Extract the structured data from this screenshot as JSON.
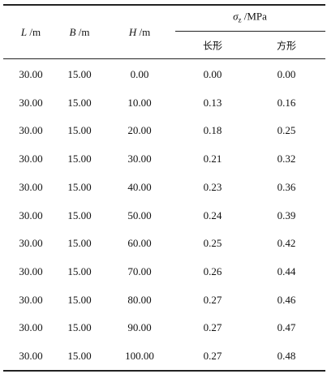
{
  "table": {
    "header": {
      "columns": [
        {
          "symbol": "L",
          "unit": "/m"
        },
        {
          "symbol": "B",
          "unit": "/m"
        },
        {
          "symbol": "H",
          "unit": "/m"
        }
      ],
      "group": {
        "symbol": "σ",
        "subscript": "z",
        "unit": "/MPa"
      },
      "subcolumns": [
        "长形",
        "方形"
      ]
    },
    "rows": [
      [
        "30.00",
        "15.00",
        "0.00",
        "0.00",
        "0.00"
      ],
      [
        "30.00",
        "15.00",
        "10.00",
        "0.13",
        "0.16"
      ],
      [
        "30.00",
        "15.00",
        "20.00",
        "0.18",
        "0.25"
      ],
      [
        "30.00",
        "15.00",
        "30.00",
        "0.21",
        "0.32"
      ],
      [
        "30.00",
        "15.00",
        "40.00",
        "0.23",
        "0.36"
      ],
      [
        "30.00",
        "15.00",
        "50.00",
        "0.24",
        "0.39"
      ],
      [
        "30.00",
        "15.00",
        "60.00",
        "0.25",
        "0.42"
      ],
      [
        "30.00",
        "15.00",
        "70.00",
        "0.26",
        "0.44"
      ],
      [
        "30.00",
        "15.00",
        "80.00",
        "0.27",
        "0.46"
      ],
      [
        "30.00",
        "15.00",
        "90.00",
        "0.27",
        "0.47"
      ],
      [
        "30.00",
        "15.00",
        "100.00",
        "0.27",
        "0.48"
      ]
    ]
  }
}
